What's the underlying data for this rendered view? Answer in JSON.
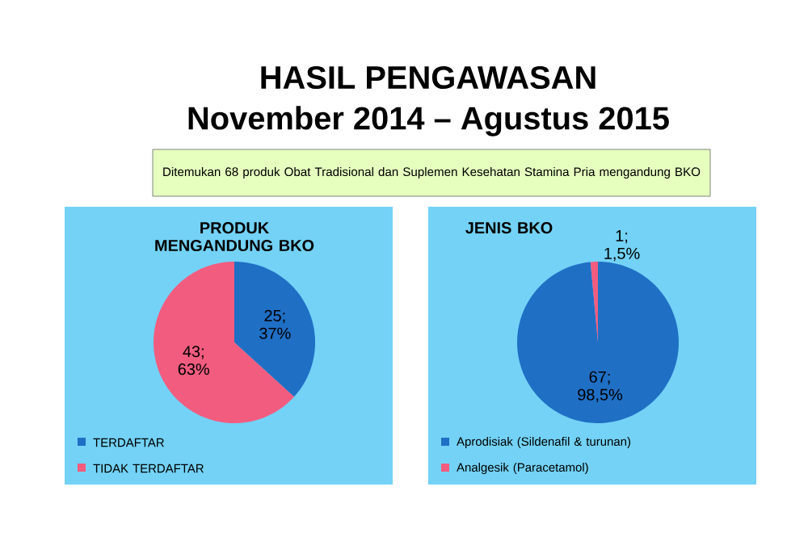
{
  "chart_data": [
    {
      "type": "other",
      "title": "HASIL PENGAWASAN",
      "subtitle": "November 2014 – Agustus 2015",
      "annotations": [
        "Ditemukan 68 produk Obat Tradisional dan Suplemen Kesehatan Stamina Pria mengandung BKO"
      ]
    },
    {
      "type": "pie",
      "title": "PRODUK MENGANDUNG BKO",
      "categories": [
        "TERDAFTAR",
        "TIDAK TERDAFTAR"
      ],
      "values": [
        25,
        43
      ],
      "colors": [
        "#1f6fc5",
        "#f25c7f"
      ],
      "value_labels": [
        "25; 37%",
        "43; 63%"
      ],
      "legend": "bottom"
    },
    {
      "type": "pie",
      "title": "JENIS BKO",
      "categories": [
        "Aprodisiak (Sildenafil & turunan)",
        "Analgesik (Paracetamol)"
      ],
      "values": [
        67,
        1
      ],
      "colors": [
        "#1f6fc5",
        "#f25c7f"
      ],
      "value_labels": [
        "67; 98,5%",
        "1; 1,5%"
      ],
      "legend": "bottom"
    }
  ]
}
